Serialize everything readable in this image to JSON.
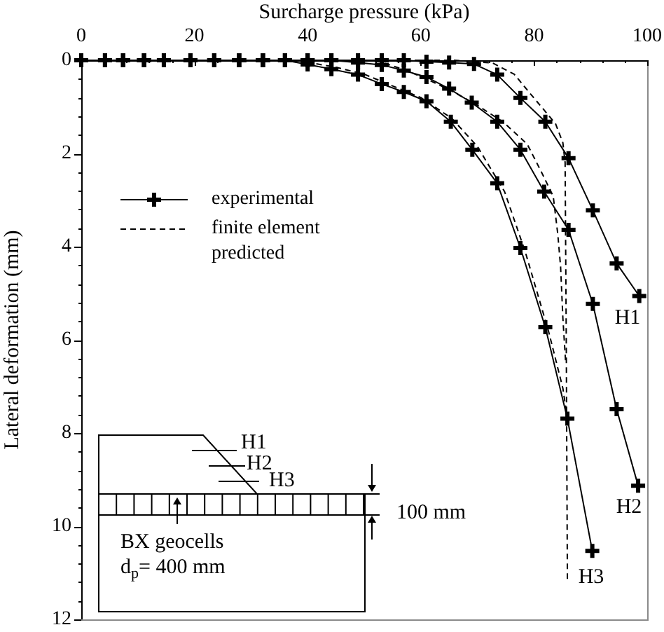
{
  "chart_data": {
    "type": "line",
    "xlabel": "Surcharge pressure (kPa)",
    "ylabel": "Lateral deformation (mm)",
    "xlim": [
      0,
      100
    ],
    "ylim": [
      12,
      0
    ],
    "xticks": [
      0,
      {
        "value": 4,
        "label": null
      },
      {
        "value": 8,
        "label": null
      },
      {
        "value": 12,
        "label": null
      },
      {
        "value": 16,
        "label": null
      },
      20,
      {
        "value": 24,
        "label": null
      },
      {
        "value": 28,
        "label": null
      },
      {
        "value": 32,
        "label": null
      },
      {
        "value": 36,
        "label": null
      },
      40,
      {
        "value": 44,
        "label": null
      },
      {
        "value": 48,
        "label": null
      },
      {
        "value": 52,
        "label": null
      },
      {
        "value": 56,
        "label": null
      },
      60,
      {
        "value": 64,
        "label": null
      },
      {
        "value": 68,
        "label": null
      },
      {
        "value": 72,
        "label": null
      },
      {
        "value": 76,
        "label": null
      },
      80,
      {
        "value": 84,
        "label": null
      },
      {
        "value": 88,
        "label": null
      },
      {
        "value": 92,
        "label": null
      },
      {
        "value": 96,
        "label": null
      },
      100
    ],
    "yticks": [
      0,
      {
        "value": 0.4,
        "label": null
      },
      {
        "value": 0.8,
        "label": null
      },
      {
        "value": 1.2,
        "label": null
      },
      {
        "value": 1.6,
        "label": null
      },
      2,
      {
        "value": 2.4,
        "label": null
      },
      {
        "value": 2.8,
        "label": null
      },
      {
        "value": 3.2,
        "label": null
      },
      {
        "value": 3.6,
        "label": null
      },
      4,
      {
        "value": 4.4,
        "label": null
      },
      {
        "value": 4.8,
        "label": null
      },
      {
        "value": 5.2,
        "label": null
      },
      {
        "value": 5.6,
        "label": null
      },
      6,
      {
        "value": 6.4,
        "label": null
      },
      {
        "value": 6.8,
        "label": null
      },
      {
        "value": 7.2,
        "label": null
      },
      {
        "value": 7.6,
        "label": null
      },
      8,
      {
        "value": 8.4,
        "label": null
      },
      {
        "value": 8.8,
        "label": null
      },
      {
        "value": 9.2,
        "label": null
      },
      {
        "value": 9.6,
        "label": null
      },
      10,
      {
        "value": 10.4,
        "label": null
      },
      {
        "value": 10.8,
        "label": null
      },
      {
        "value": 11.2,
        "label": null
      },
      {
        "value": 11.6,
        "label": null
      },
      12
    ],
    "legend": "top left",
    "series": [
      {
        "name": "experimental",
        "color": "#000000",
        "marker": "cross",
        "line_style": "solid",
        "x": [
          0,
          4.2,
          7.4,
          11.1,
          14.6,
          19.3,
          23.5,
          27.9,
          32.1,
          36,
          40,
          44.2,
          48.9,
          53.1,
          57,
          61,
          65,
          69.4,
          73.5,
          77.6,
          82,
          86.1,
          90.4,
          94.6,
          98.6
        ],
        "values": [
          0,
          0,
          0,
          0,
          0,
          0,
          0,
          0,
          0,
          0,
          0,
          0,
          0,
          0,
          0,
          0.03,
          0.05,
          0.08,
          0.31,
          0.81,
          1.32,
          2.1,
          3.22,
          4.36,
          5.06
        ]
      },
      {
        "color": "#000000",
        "marker": "cross",
        "line_style": "solid",
        "x": [
          0,
          4.2,
          7.4,
          11.1,
          14.6,
          19.3,
          23.5,
          27.9,
          32.1,
          36,
          40,
          44.2,
          48.9,
          53.1,
          57,
          61,
          65,
          69,
          73.5,
          77.6,
          81.8,
          86.1,
          90.4,
          94.6,
          98.4
        ],
        "values": [
          0,
          0,
          0,
          0,
          0,
          0,
          0,
          0,
          0,
          0,
          0,
          0,
          0.05,
          0.1,
          0.22,
          0.36,
          0.61,
          0.91,
          1.32,
          1.92,
          2.82,
          3.64,
          5.23,
          7.49,
          9.13
        ]
      },
      {
        "color": "#000000",
        "marker": "cross",
        "line_style": "solid",
        "x": [
          0,
          4.2,
          7.4,
          11.1,
          14.6,
          19.3,
          23.5,
          27.9,
          32.1,
          36,
          40,
          44.2,
          48.9,
          53.1,
          57,
          61,
          65.3,
          69.1,
          73.5,
          77.6,
          82,
          85.9,
          90.3
        ],
        "values": [
          0,
          0,
          0,
          0,
          0,
          0,
          0,
          0,
          0,
          0,
          0.09,
          0.19,
          0.31,
          0.51,
          0.68,
          0.88,
          1.32,
          1.92,
          2.64,
          4.03,
          5.73,
          7.69,
          10.53
        ]
      },
      {
        "name": "finite element predicted",
        "color": "#000000",
        "marker": "none",
        "line_style": "dashed",
        "x": [
          0,
          66,
          72.7,
          76.5,
          79.3,
          83.8,
          85.1,
          85.5,
          85.7,
          85.9
        ],
        "values": [
          0,
          0,
          0.06,
          0.3,
          0.71,
          1.36,
          1.77,
          2.2,
          6,
          11.14
        ]
      },
      {
        "color": "#000000",
        "marker": "none",
        "line_style": "dashed",
        "x": [
          0,
          52,
          57,
          61,
          65,
          69.5,
          74.5,
          78.8,
          81.4,
          83.4,
          84.2,
          84.7,
          85.1,
          85.6
        ],
        "values": [
          0,
          0,
          0.2,
          0.4,
          0.63,
          0.93,
          1.32,
          1.8,
          2.42,
          2.92,
          3.73,
          4.43,
          5.53,
          6.5
        ]
      },
      {
        "color": "#000000",
        "marker": "none",
        "line_style": "dashed",
        "x": [
          0,
          38,
          45,
          50,
          55,
          60,
          65.5,
          70,
          74.8,
          78.5,
          82.6,
          85.1,
          85.9
        ],
        "values": [
          0,
          0,
          0.15,
          0.3,
          0.55,
          0.8,
          1.25,
          1.85,
          2.82,
          4.13,
          5.83,
          7.04,
          7.69
        ]
      }
    ],
    "annotations": [
      "H1",
      "H2",
      "H3",
      "H1",
      "H2",
      "H3",
      "100 mm",
      "BX geocells",
      "d$_{p}$= 400 mm"
    ]
  }
}
